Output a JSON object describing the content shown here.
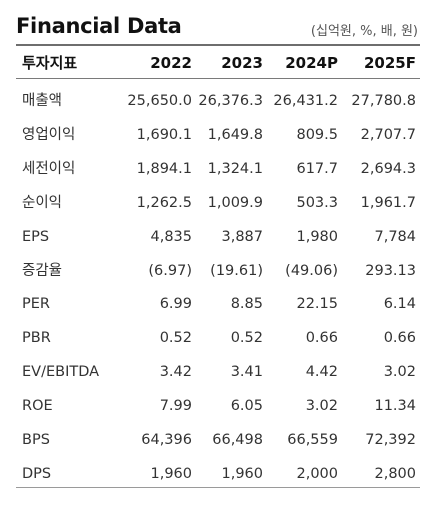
{
  "title": "Financial Data",
  "unit": "(십억원, %, 배, 원)",
  "columns": [
    "투자지표",
    "2022",
    "2023",
    "2024P",
    "2025F"
  ],
  "rows": [
    [
      "매출액",
      "25,650.0",
      "26,376.3",
      "26,431.2",
      "27,780.8"
    ],
    [
      "영업이익",
      "1,690.1",
      "1,649.8",
      "809.5",
      "2,707.7"
    ],
    [
      "세전이익",
      "1,894.1",
      "1,324.1",
      "617.7",
      "2,694.3"
    ],
    [
      "순이익",
      "1,262.5",
      "1,009.9",
      "503.3",
      "1,961.7"
    ],
    [
      "EPS",
      "4,835",
      "3,887",
      "1,980",
      "7,784"
    ],
    [
      "증감율",
      "(6.97)",
      "(19.61)",
      "(49.06)",
      "293.13"
    ],
    [
      "PER",
      "6.99",
      "8.85",
      "22.15",
      "6.14"
    ],
    [
      "PBR",
      "0.52",
      "0.52",
      "0.66",
      "0.66"
    ],
    [
      "EV/EBITDA",
      "3.42",
      "3.41",
      "4.42",
      "3.02"
    ],
    [
      "ROE",
      "7.99",
      "6.05",
      "3.02",
      "11.34"
    ],
    [
      "BPS",
      "64,396",
      "66,498",
      "66,559",
      "72,392"
    ],
    [
      "DPS",
      "1,960",
      "1,960",
      "2,000",
      "2,800"
    ]
  ]
}
